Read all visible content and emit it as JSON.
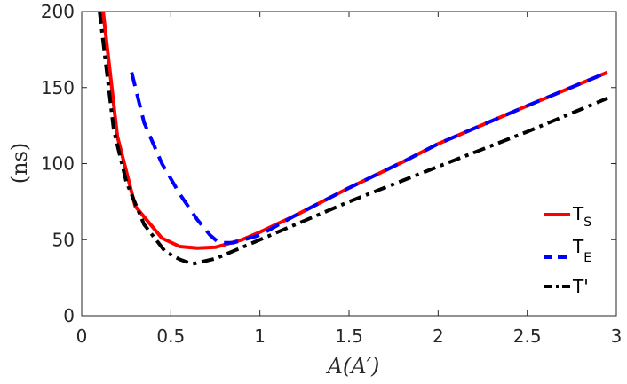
{
  "chart_data": {
    "type": "line",
    "title": "",
    "xlabel": "A(A′)",
    "ylabel": "(ns)",
    "xlim": [
      0,
      3
    ],
    "ylim": [
      0,
      200
    ],
    "xticks": [
      0,
      0.5,
      1,
      1.5,
      2,
      2.5,
      3
    ],
    "xtick_labels": [
      "0",
      "0.5",
      "1",
      "1.5",
      "2",
      "2.5",
      "3"
    ],
    "yticks": [
      0,
      50,
      100,
      150,
      200
    ],
    "ytick_labels": [
      "0",
      "50",
      "100",
      "150",
      "200"
    ],
    "grid": false,
    "legend_position": "right",
    "series": [
      {
        "name": "TS",
        "name_main": "T",
        "name_sub": "S",
        "color": "#ff0000",
        "dash": "solid",
        "x": [
          0.12,
          0.2,
          0.3,
          0.45,
          0.55,
          0.65,
          0.75,
          0.9,
          1.0,
          1.2,
          1.5,
          1.8,
          2.0,
          2.5,
          2.95
        ],
        "y": [
          200,
          118,
          72,
          51,
          45.5,
          44.5,
          45,
          50,
          55,
          66,
          84,
          101,
          113,
          138,
          160
        ]
      },
      {
        "name": "TE",
        "name_main": "T",
        "name_sub": "E",
        "color": "#0000ff",
        "dash": "dashed",
        "x": [
          0.28,
          0.35,
          0.45,
          0.55,
          0.65,
          0.72,
          0.77,
          0.85,
          1.0,
          1.2,
          1.5,
          1.8,
          2.0,
          2.5,
          2.95
        ],
        "y": [
          160,
          127,
          100,
          80,
          63,
          53,
          48,
          48,
          53,
          66,
          84,
          101,
          113,
          138,
          160
        ]
      },
      {
        "name": "T'",
        "name_main": "T'",
        "name_sub": "",
        "color": "#000000",
        "dash": "dashdot",
        "x": [
          0.1,
          0.18,
          0.25,
          0.35,
          0.47,
          0.55,
          0.62,
          0.75,
          1.0,
          1.5,
          2.0,
          2.5,
          2.95
        ],
        "y": [
          200,
          122,
          88,
          60,
          42,
          37,
          34,
          37.5,
          50,
          75,
          98,
          121,
          143
        ]
      }
    ]
  }
}
